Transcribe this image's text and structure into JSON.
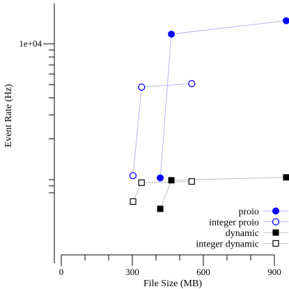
{
  "chart_data": {
    "type": "scatter",
    "title": "",
    "xlabel": "File Size (MB)",
    "ylabel": "Event Rate (Hz)",
    "xlim": [
      -10,
      950
    ],
    "ylim": [
      600,
      15000
    ],
    "yscale": "log",
    "xticks": [
      {
        "value": 0,
        "label": "0"
      },
      {
        "value": 300,
        "label": "300"
      },
      {
        "value": 600,
        "label": "600"
      },
      {
        "value": 900,
        "label": "900"
      }
    ],
    "xminor_ticks": [
      100,
      200,
      400,
      500,
      700,
      800
    ],
    "yticks": [
      {
        "value": 10000,
        "label": "1e+04"
      }
    ],
    "yminor_ticks": [
      800,
      900,
      1000,
      2000,
      3000,
      4000,
      5000,
      6000,
      7000,
      8000,
      9000
    ],
    "grid": false,
    "legend_position": "bottom-right",
    "series": [
      {
        "name": "proio",
        "marker": "filled-circle",
        "color": "#0000ff",
        "line_color": "#b4b4f0",
        "points": [
          {
            "x": 418,
            "y": 1030
          },
          {
            "x": 465,
            "y": 11800
          },
          {
            "x": 950,
            "y": 14800
          }
        ]
      },
      {
        "name": "integer proio",
        "marker": "open-circle",
        "color": "#0000ff",
        "line_color": "#b4b4f0",
        "points": [
          {
            "x": 303,
            "y": 1070
          },
          {
            "x": 339,
            "y": 4800
          },
          {
            "x": 551,
            "y": 5100
          }
        ]
      },
      {
        "name": "dynamic",
        "marker": "filled-square",
        "color": "#000000",
        "line_color": "#bdbdbd",
        "points": [
          {
            "x": 418,
            "y": 610
          },
          {
            "x": 465,
            "y": 990
          },
          {
            "x": 950,
            "y": 1040
          }
        ]
      },
      {
        "name": "integer dynamic",
        "marker": "open-square",
        "color": "#000000",
        "line_color": "#bdbdbd",
        "points": [
          {
            "x": 303,
            "y": 690
          },
          {
            "x": 339,
            "y": 950
          },
          {
            "x": 551,
            "y": 970
          }
        ]
      }
    ]
  }
}
